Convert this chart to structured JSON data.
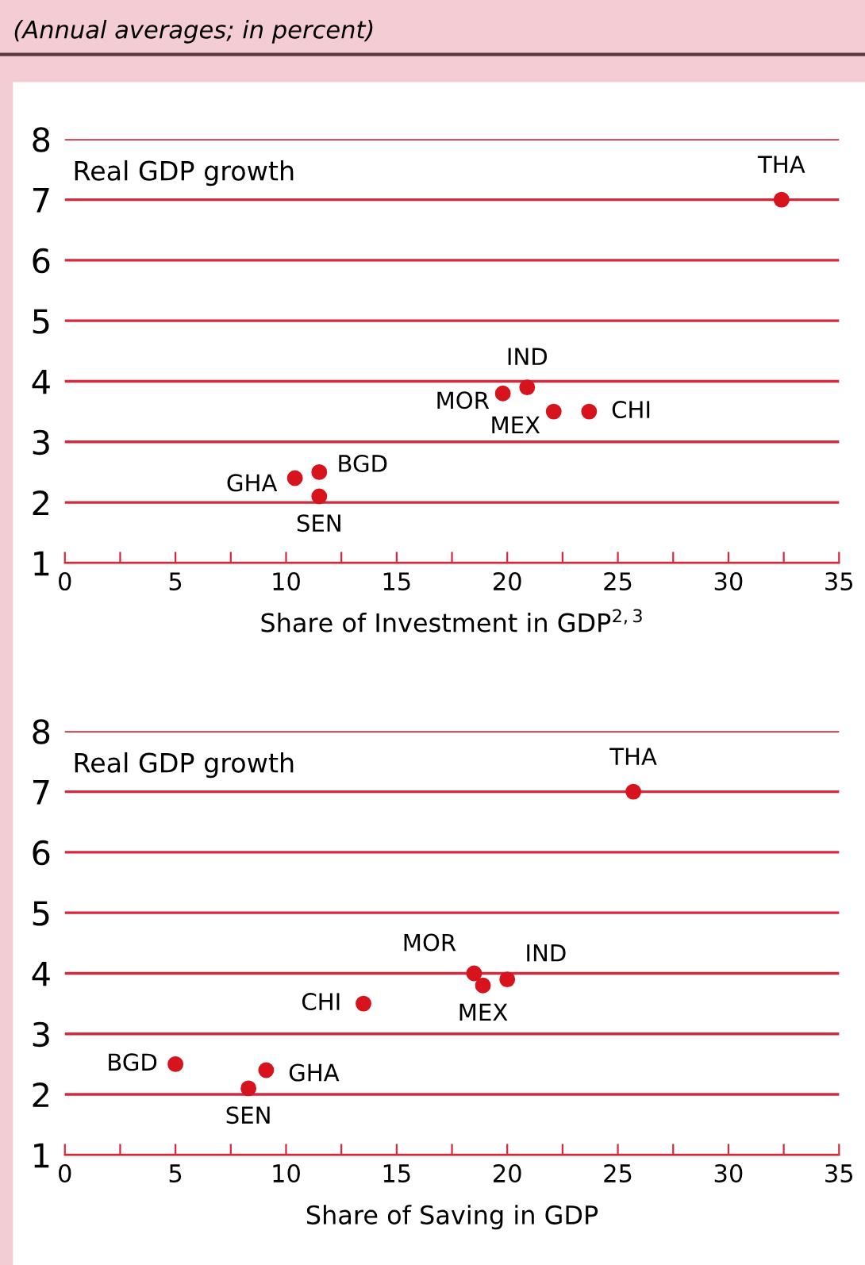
{
  "chart_data": [
    {
      "type": "scatter",
      "subtitle": "(Annual averages; in percent)",
      "ylabel": "Real GDP growth",
      "xlabel": "Share of Investment in GDP$^{2,3}$",
      "series": [
        {
          "color": "#d7141e",
          "x": [
            32.4,
            20.9,
            19.8,
            22.1,
            23.7,
            10.4,
            11.5,
            11.5
          ],
          "values": [
            7.0,
            3.9,
            3.8,
            3.5,
            3.5,
            2.4,
            2.5,
            2.1
          ]
        }
      ],
      "annotations": [
        {
          "text": "THA",
          "x": 32.4,
          "y": 7.0
        },
        {
          "text": "IND",
          "x": 20.9,
          "y": 3.9
        },
        {
          "text": "MOR",
          "x": 19.8,
          "y": 3.8
        },
        {
          "text": "MEX",
          "x": 22.1,
          "y": 3.5
        },
        {
          "text": "CHI",
          "x": 23.7,
          "y": 3.5
        },
        {
          "text": "GHA",
          "x": 10.4,
          "y": 2.4
        },
        {
          "text": "BGD",
          "x": 11.5,
          "y": 2.5
        },
        {
          "text": "SEN",
          "x": 11.5,
          "y": 2.1
        }
      ],
      "xlim": [
        0,
        35
      ],
      "ylim": [
        1,
        8
      ],
      "xticks": [
        0,
        {
          "value": 2.5,
          "label": null
        },
        5,
        {
          "value": 7.5,
          "label": null
        },
        10,
        {
          "value": 12.5,
          "label": null
        },
        15,
        {
          "value": 17.5,
          "label": null
        },
        20,
        {
          "value": 22.5,
          "label": null
        },
        25,
        {
          "value": 27.5,
          "label": null
        },
        30,
        {
          "value": 32.5,
          "label": null
        },
        35
      ],
      "yticks": [
        1,
        2,
        3,
        4,
        5,
        6,
        7,
        8
      ],
      "grid": "y",
      "marker": "circle"
    },
    {
      "type": "scatter",
      "ylabel": "Real GDP growth",
      "xlabel": "Share of Saving in GDP",
      "series": [
        {
          "color": "#d7141e",
          "x": [
            25.7,
            18.5,
            18.9,
            20.0,
            13.5,
            5.0,
            9.1,
            8.3
          ],
          "values": [
            7.0,
            4.0,
            3.8,
            3.9,
            3.5,
            2.5,
            2.4,
            2.1
          ]
        }
      ],
      "annotations": [
        {
          "text": "THA",
          "x": 25.7,
          "y": 7.0
        },
        {
          "text": "MOR",
          "x": 18.5,
          "y": 4.0
        },
        {
          "text": "MEX",
          "x": 18.9,
          "y": 3.8
        },
        {
          "text": "IND",
          "x": 20.0,
          "y": 3.9
        },
        {
          "text": "CHI",
          "x": 13.5,
          "y": 3.5
        },
        {
          "text": "BGD",
          "x": 5.0,
          "y": 2.5
        },
        {
          "text": "GHA",
          "x": 9.1,
          "y": 2.4
        },
        {
          "text": "SEN",
          "x": 8.3,
          "y": 2.1
        }
      ],
      "xlim": [
        0,
        35
      ],
      "ylim": [
        1,
        8
      ],
      "xticks": [
        0,
        {
          "value": 2.5,
          "label": null
        },
        5,
        {
          "value": 7.5,
          "label": null
        },
        10,
        {
          "value": 12.5,
          "label": null
        },
        15,
        {
          "value": 17.5,
          "label": null
        },
        20,
        {
          "value": 22.5,
          "label": null
        },
        25,
        {
          "value": 27.5,
          "label": null
        },
        30,
        {
          "value": 32.5,
          "label": null
        },
        35
      ],
      "yticks": [
        1,
        2,
        3,
        4,
        5,
        6,
        7,
        8
      ],
      "grid": "y",
      "marker": "circle"
    }
  ]
}
